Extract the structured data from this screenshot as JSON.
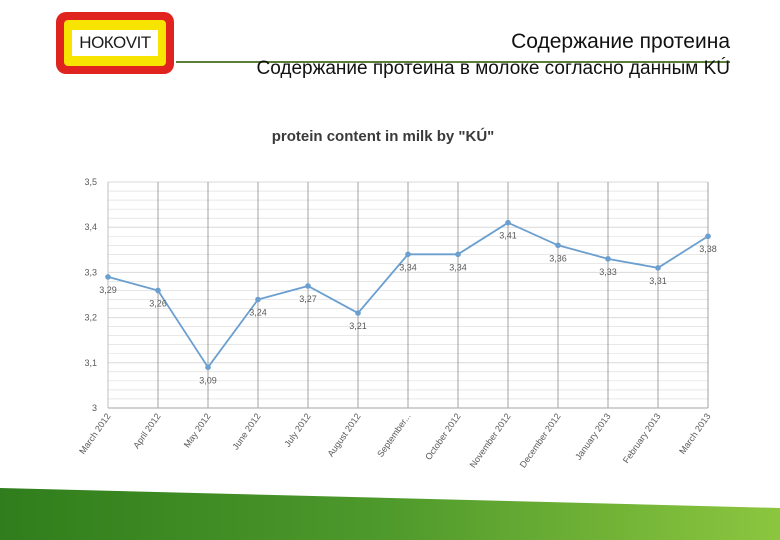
{
  "header": {
    "logo_text": "НОКОVIT",
    "title": "Содержание протеина",
    "subtitle": "Содержание протеина в молоке согласно данным KÚ"
  },
  "colors": {
    "line": "#6a9fd0",
    "grid": "#d9d9d9",
    "vgrid": "#8c8c8c",
    "logo_red": "#e0231f",
    "logo_yellow": "#f7e400",
    "footer_green": "#3f8a25"
  },
  "chart_data": {
    "type": "line",
    "title": "protein content in milk by \"KÚ\"",
    "categories": [
      "March 2012",
      "April 2012",
      "May 2012",
      "June 2012",
      "July 2012",
      "August 2012",
      "September...",
      "October 2012",
      "November 2012",
      "December 2012",
      "January 2013",
      "February 2013",
      "March 2013"
    ],
    "series": [
      {
        "values": [
          3.29,
          3.26,
          3.09,
          3.24,
          3.27,
          3.21,
          3.34,
          3.34,
          3.41,
          3.36,
          3.33,
          3.31,
          3.38
        ]
      }
    ],
    "data_labels": [
      "3,29",
      "3,26",
      "3,09",
      "3,24",
      "3,27",
      "3,21",
      "3,34",
      "3,34",
      "3,41",
      "3,36",
      "3,33",
      "3,31",
      "3,38"
    ],
    "yticks": [
      "3",
      "3,1",
      "3,2",
      "3,3",
      "3,4",
      "3,5"
    ],
    "ylim": [
      3.0,
      3.5
    ],
    "grid": true,
    "legend": "none"
  }
}
